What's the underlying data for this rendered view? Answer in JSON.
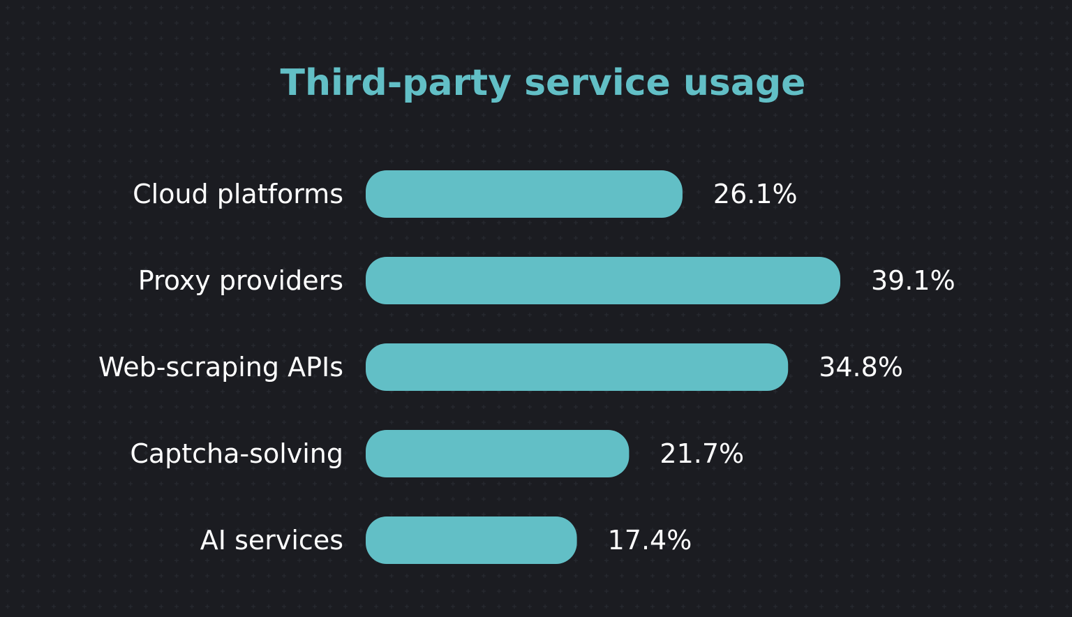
{
  "chart_data": {
    "type": "bar",
    "orientation": "horizontal",
    "title": "Third-party service usage",
    "categories": [
      "Cloud platforms",
      "Proxy providers",
      "Web-scraping APIs",
      "Captcha-solving",
      "AI services"
    ],
    "values": [
      26.1,
      39.1,
      34.8,
      21.7,
      17.4
    ],
    "value_labels": [
      "26.1%",
      "39.1%",
      "34.8%",
      "21.7%",
      "17.4%"
    ],
    "unit": "%",
    "xlim": [
      0,
      39.1
    ],
    "grid": false,
    "legend": "none"
  },
  "colors": {
    "background": "#1b1c21",
    "bar": "#62bfc6",
    "title": "#62bfc6",
    "text": "#ffffff",
    "dot_pattern": "#2a2c33"
  }
}
